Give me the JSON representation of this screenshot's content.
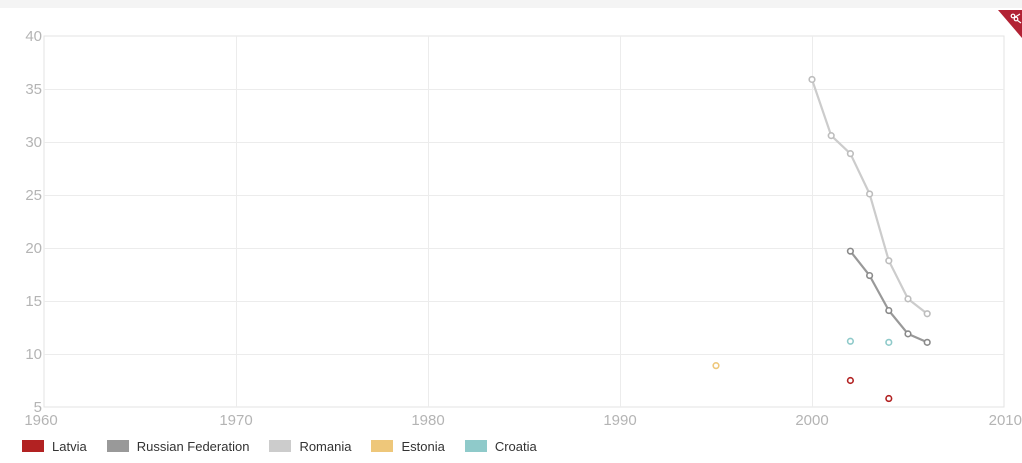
{
  "chart_data": {
    "type": "line",
    "title": "",
    "xlabel": "",
    "ylabel": "",
    "xlim": [
      1960,
      2010
    ],
    "ylim": [
      5,
      40
    ],
    "x_ticks": [
      1960,
      1970,
      1980,
      1990,
      2000,
      2010
    ],
    "y_ticks": [
      5,
      10,
      15,
      20,
      25,
      30,
      35,
      40
    ],
    "grid": true,
    "legend_position": "bottom-left",
    "series": [
      {
        "name": "Latvia",
        "color": "#b22222",
        "connected": false,
        "points": [
          [
            2002,
            7.5
          ],
          [
            2004,
            5.8
          ]
        ]
      },
      {
        "name": "Russian Federation",
        "color": "#999999",
        "connected": true,
        "points": [
          [
            2002,
            19.7
          ],
          [
            2003,
            17.4
          ],
          [
            2004,
            14.1
          ],
          [
            2005,
            11.9
          ],
          [
            2006,
            11.1
          ]
        ]
      },
      {
        "name": "Romania",
        "color": "#cccccc",
        "connected": true,
        "points": [
          [
            2000,
            35.9
          ],
          [
            2001,
            30.6
          ],
          [
            2002,
            28.9
          ],
          [
            2003,
            25.1
          ],
          [
            2004,
            18.8
          ],
          [
            2005,
            15.2
          ],
          [
            2006,
            13.8
          ]
        ]
      },
      {
        "name": "Estonia",
        "color": "#eec77a",
        "connected": false,
        "points": [
          [
            1995,
            8.9
          ]
        ]
      },
      {
        "name": "Croatia",
        "color": "#8fcaca",
        "connected": false,
        "points": [
          [
            2002,
            11.2
          ],
          [
            2004,
            11.1
          ]
        ]
      }
    ]
  },
  "icons": {
    "export": "scissors-icon"
  }
}
